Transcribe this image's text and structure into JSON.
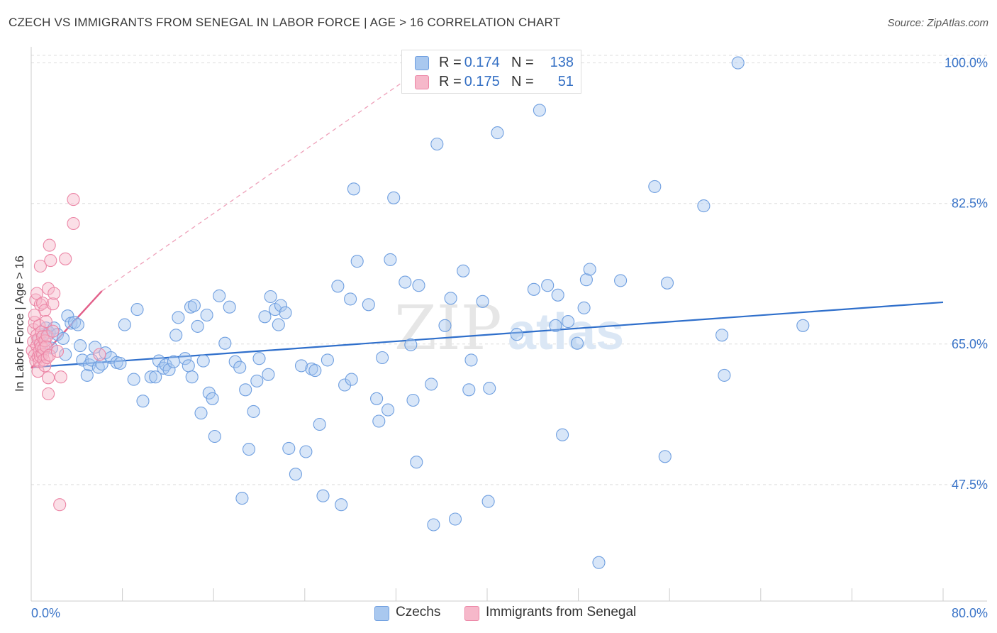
{
  "title": "CZECH VS IMMIGRANTS FROM SENEGAL IN LABOR FORCE | AGE > 16 CORRELATION CHART",
  "source": "Source: ZipAtlas.com",
  "watermark": {
    "zip": "ZIP",
    "atlas": "atlas"
  },
  "legend_top": {
    "rows": [
      {
        "r_label": "R =",
        "r_value": "0.174",
        "n_label": "N =",
        "n_value": "138"
      },
      {
        "r_label": "R =",
        "r_value": "0.175",
        "n_label": "N =",
        "n_value": "51"
      }
    ]
  },
  "legend_bottom": {
    "czechs": "Czechs",
    "senegal": "Immigrants from Senegal"
  },
  "colors": {
    "czech_fill": "#a9c8ef",
    "czech_stroke": "#6f9fe0",
    "czech_line": "#2f6fcb",
    "senegal_fill": "#f6b8ca",
    "senegal_stroke": "#ec86a6",
    "senegal_line": "#e2608a",
    "tick_label": "#3a74c8",
    "grid": "#dddddd"
  },
  "chart_data": {
    "type": "scatter",
    "title": "CZECH VS IMMIGRANTS FROM SENEGAL IN LABOR FORCE | AGE > 16 CORRELATION CHART",
    "xlabel": "",
    "ylabel": "In Labor Force | Age > 16",
    "xlim": [
      0,
      80
    ],
    "ylim": [
      33,
      102
    ],
    "x_tick_labels": [
      "0.0%",
      "80.0%"
    ],
    "y_ticks": [
      47.5,
      65.0,
      82.5,
      100.0
    ],
    "y_tick_labels": [
      "47.5%",
      "65.0%",
      "82.5%",
      "100.0%"
    ],
    "grid": true,
    "series": [
      {
        "name": "Czechs",
        "r": 0.174,
        "n": 138,
        "trend": {
          "x": [
            0,
            80
          ],
          "y": [
            62.1,
            70.2
          ]
        },
        "points": [
          [
            0.7,
            65.6
          ],
          [
            0.9,
            64.1
          ],
          [
            1.1,
            66.2
          ],
          [
            1.3,
            67.0
          ],
          [
            1.6,
            66.4
          ],
          [
            1.8,
            64.5
          ],
          [
            2.0,
            67.0
          ],
          [
            2.3,
            66.2
          ],
          [
            2.8,
            65.7
          ],
          [
            3.0,
            63.7
          ],
          [
            3.2,
            68.5
          ],
          [
            3.5,
            67.6
          ],
          [
            3.8,
            67.7
          ],
          [
            4.1,
            67.4
          ],
          [
            4.3,
            64.8
          ],
          [
            4.5,
            63.0
          ],
          [
            4.9,
            61.1
          ],
          [
            5.1,
            62.4
          ],
          [
            5.3,
            63.0
          ],
          [
            5.6,
            64.6
          ],
          [
            5.9,
            62.1
          ],
          [
            6.2,
            62.5
          ],
          [
            6.5,
            63.9
          ],
          [
            7.0,
            63.3
          ],
          [
            7.5,
            62.7
          ],
          [
            7.8,
            62.6
          ],
          [
            8.2,
            67.4
          ],
          [
            9.0,
            60.6
          ],
          [
            9.3,
            69.3
          ],
          [
            9.8,
            57.9
          ],
          [
            10.5,
            60.9
          ],
          [
            10.9,
            60.9
          ],
          [
            11.2,
            62.9
          ],
          [
            11.6,
            62.0
          ],
          [
            11.8,
            62.4
          ],
          [
            12.1,
            61.8
          ],
          [
            12.5,
            62.8
          ],
          [
            12.7,
            66.1
          ],
          [
            12.9,
            68.3
          ],
          [
            13.5,
            63.2
          ],
          [
            13.8,
            62.3
          ],
          [
            14.0,
            69.6
          ],
          [
            14.1,
            60.9
          ],
          [
            14.3,
            69.8
          ],
          [
            14.6,
            67.2
          ],
          [
            14.9,
            56.4
          ],
          [
            15.1,
            62.9
          ],
          [
            15.4,
            68.6
          ],
          [
            15.6,
            58.9
          ],
          [
            15.9,
            58.2
          ],
          [
            16.1,
            53.5
          ],
          [
            16.5,
            71.0
          ],
          [
            17.0,
            65.1
          ],
          [
            17.4,
            69.6
          ],
          [
            17.9,
            62.8
          ],
          [
            18.3,
            62.1
          ],
          [
            18.5,
            45.8
          ],
          [
            18.8,
            59.3
          ],
          [
            19.1,
            51.9
          ],
          [
            19.5,
            56.6
          ],
          [
            19.8,
            60.4
          ],
          [
            20.0,
            63.2
          ],
          [
            20.5,
            68.4
          ],
          [
            20.8,
            61.2
          ],
          [
            21.0,
            70.9
          ],
          [
            21.4,
            69.3
          ],
          [
            21.7,
            67.4
          ],
          [
            21.9,
            69.8
          ],
          [
            22.3,
            68.9
          ],
          [
            22.6,
            52.0
          ],
          [
            23.2,
            48.8
          ],
          [
            23.7,
            62.3
          ],
          [
            24.1,
            51.6
          ],
          [
            24.6,
            61.9
          ],
          [
            24.9,
            61.7
          ],
          [
            25.3,
            55.0
          ],
          [
            25.6,
            46.1
          ],
          [
            26.0,
            63.0
          ],
          [
            26.9,
            72.2
          ],
          [
            27.2,
            45.0
          ],
          [
            27.5,
            59.9
          ],
          [
            28.0,
            70.6
          ],
          [
            28.1,
            60.6
          ],
          [
            28.3,
            84.3
          ],
          [
            28.6,
            75.3
          ],
          [
            29.6,
            69.9
          ],
          [
            30.3,
            58.2
          ],
          [
            30.5,
            55.4
          ],
          [
            30.8,
            63.3
          ],
          [
            31.3,
            56.8
          ],
          [
            31.5,
            75.5
          ],
          [
            31.8,
            83.2
          ],
          [
            32.8,
            72.7
          ],
          [
            33.3,
            64.9
          ],
          [
            33.5,
            58.0
          ],
          [
            34.0,
            72.3
          ],
          [
            33.8,
            50.3
          ],
          [
            35.1,
            60.0
          ],
          [
            35.3,
            42.5
          ],
          [
            35.6,
            89.9
          ],
          [
            36.3,
            67.3
          ],
          [
            36.8,
            70.7
          ],
          [
            37.2,
            43.2
          ],
          [
            37.9,
            74.1
          ],
          [
            38.4,
            59.3
          ],
          [
            38.6,
            63.0
          ],
          [
            39.6,
            70.3
          ],
          [
            40.2,
            59.5
          ],
          [
            40.1,
            45.4
          ],
          [
            40.9,
            91.3
          ],
          [
            42.6,
            66.2
          ],
          [
            44.1,
            71.8
          ],
          [
            44.6,
            94.1
          ],
          [
            45.3,
            72.3
          ],
          [
            46.0,
            67.3
          ],
          [
            46.2,
            71.1
          ],
          [
            46.6,
            53.7
          ],
          [
            47.1,
            67.8
          ],
          [
            47.9,
            65.1
          ],
          [
            48.5,
            69.5
          ],
          [
            48.7,
            73.0
          ],
          [
            49.0,
            74.3
          ],
          [
            49.8,
            37.8
          ],
          [
            51.7,
            72.9
          ],
          [
            54.7,
            84.6
          ],
          [
            55.6,
            51.0
          ],
          [
            55.8,
            72.6
          ],
          [
            59.0,
            82.2
          ],
          [
            60.6,
            66.1
          ],
          [
            60.8,
            61.1
          ],
          [
            62.0,
            100.0
          ],
          [
            67.7,
            67.3
          ]
        ]
      },
      {
        "name": "Immigrants from Senegal",
        "r": 0.175,
        "n": 51,
        "trend": {
          "x": [
            0,
            6.2
          ],
          "y": [
            62.0,
            71.6
          ]
        },
        "trend_dashed": {
          "x": [
            6.2,
            34.0
          ],
          "y": [
            71.6,
            99.0
          ]
        },
        "points": [
          [
            0.1,
            64.2
          ],
          [
            0.2,
            65.3
          ],
          [
            0.2,
            66.8
          ],
          [
            0.3,
            63.6
          ],
          [
            0.3,
            67.7
          ],
          [
            0.4,
            70.5
          ],
          [
            0.4,
            62.9
          ],
          [
            0.5,
            64.8
          ],
          [
            0.5,
            66.1
          ],
          [
            0.5,
            71.3
          ],
          [
            0.6,
            63.4
          ],
          [
            0.6,
            65.6
          ],
          [
            0.6,
            61.6
          ],
          [
            0.7,
            64.1
          ],
          [
            0.7,
            62.8
          ],
          [
            0.7,
            67.3
          ],
          [
            0.8,
            65.0
          ],
          [
            0.8,
            63.5
          ],
          [
            0.8,
            69.9
          ],
          [
            0.9,
            64.6
          ],
          [
            0.9,
            66.5
          ],
          [
            1.0,
            63.7
          ],
          [
            1.0,
            65.9
          ],
          [
            1.0,
            70.1
          ],
          [
            1.1,
            64.4
          ],
          [
            1.1,
            63.0
          ],
          [
            1.2,
            65.4
          ],
          [
            1.2,
            62.3
          ],
          [
            1.2,
            69.2
          ],
          [
            1.3,
            67.8
          ],
          [
            1.3,
            64.7
          ],
          [
            1.4,
            63.3
          ],
          [
            1.4,
            66.0
          ],
          [
            1.5,
            60.8
          ],
          [
            1.5,
            71.9
          ],
          [
            1.6,
            63.6
          ],
          [
            0.8,
            74.7
          ],
          [
            1.6,
            77.3
          ],
          [
            1.7,
            75.4
          ],
          [
            1.5,
            58.8
          ],
          [
            1.9,
            70.0
          ],
          [
            2.0,
            71.3
          ],
          [
            2.3,
            64.1
          ],
          [
            2.5,
            45.0
          ],
          [
            2.6,
            60.9
          ],
          [
            3.0,
            75.6
          ],
          [
            3.7,
            83.0
          ],
          [
            3.7,
            80.0
          ],
          [
            6.0,
            63.7
          ],
          [
            0.3,
            68.6
          ],
          [
            1.9,
            66.6
          ]
        ]
      }
    ]
  }
}
